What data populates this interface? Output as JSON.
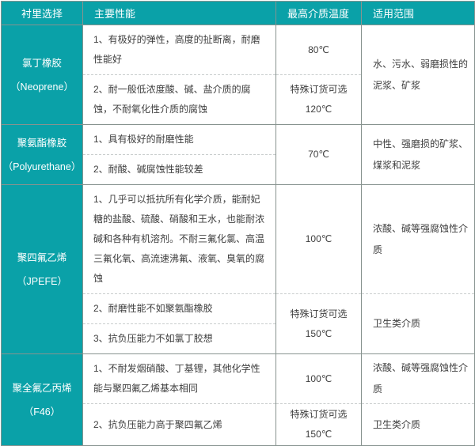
{
  "accent_color": "#0aa1a8",
  "border_color": "#87938f",
  "header": {
    "lining": "衬里选择",
    "performance": "主要性能",
    "max_temp": "最高介质温度",
    "range": "适用范围"
  },
  "rows": [
    {
      "material": "氯丁橡胶",
      "material_en": "（Neoprene）",
      "range": "水、污水、弱磨损性的泥浆、矿浆",
      "items": [
        {
          "performance": "1、有极好的弹性，高度的扯断离，耐磨性能好",
          "temp": "80℃"
        },
        {
          "performance": "2、耐一般低浓度酸、碱、盐介质的腐蚀，不耐氧化性介质的腐蚀",
          "temp_note": "特殊订货可选",
          "temp": "120℃"
        }
      ]
    },
    {
      "material": "聚氨酯橡胶",
      "material_en": "（Polyurethane）",
      "temp": "70℃",
      "range": "中性、强磨损的矿浆、煤浆和泥浆",
      "items": [
        {
          "performance": "1、具有极好的耐磨性能"
        },
        {
          "performance": "2、耐酸、碱腐蚀性能较差"
        }
      ]
    },
    {
      "material": "聚四氟乙烯",
      "material_en": "（JPEFE）",
      "items": [
        {
          "performance": "1、几乎可以抵抗所有化学介质，能耐妃糖的盐酸、硫酸、硝酸和王水，也能耐浓碱和各种有机溶剂。不耐三氟化氯、高温三氟化氧、高流速沸氟、液氧、臭氧的腐蚀",
          "temp": "100℃",
          "range": "浓酸、碱等强腐蚀性介质"
        },
        {
          "performance": "2、耐磨性能不如聚氨酯橡胶",
          "temp_note": "特殊订货可选",
          "temp": "150℃",
          "range": "卫生类介质"
        },
        {
          "performance": "3、抗负压能力不如氯丁胶想"
        }
      ]
    },
    {
      "material": "聚全氟乙丙烯",
      "material_en": "（F46）",
      "items": [
        {
          "performance": "1、不耐发烟硝酸、丁基锂，其他化学性能与聚四氟乙烯基本相同",
          "temp": "100℃",
          "range": "浓酸、碱等强腐蚀性介质"
        },
        {
          "performance": "2、抗负压能力高于聚四氟乙烯",
          "temp_note": "特殊订货可选",
          "temp": "150℃",
          "range": "卫生类介质"
        }
      ]
    }
  ]
}
